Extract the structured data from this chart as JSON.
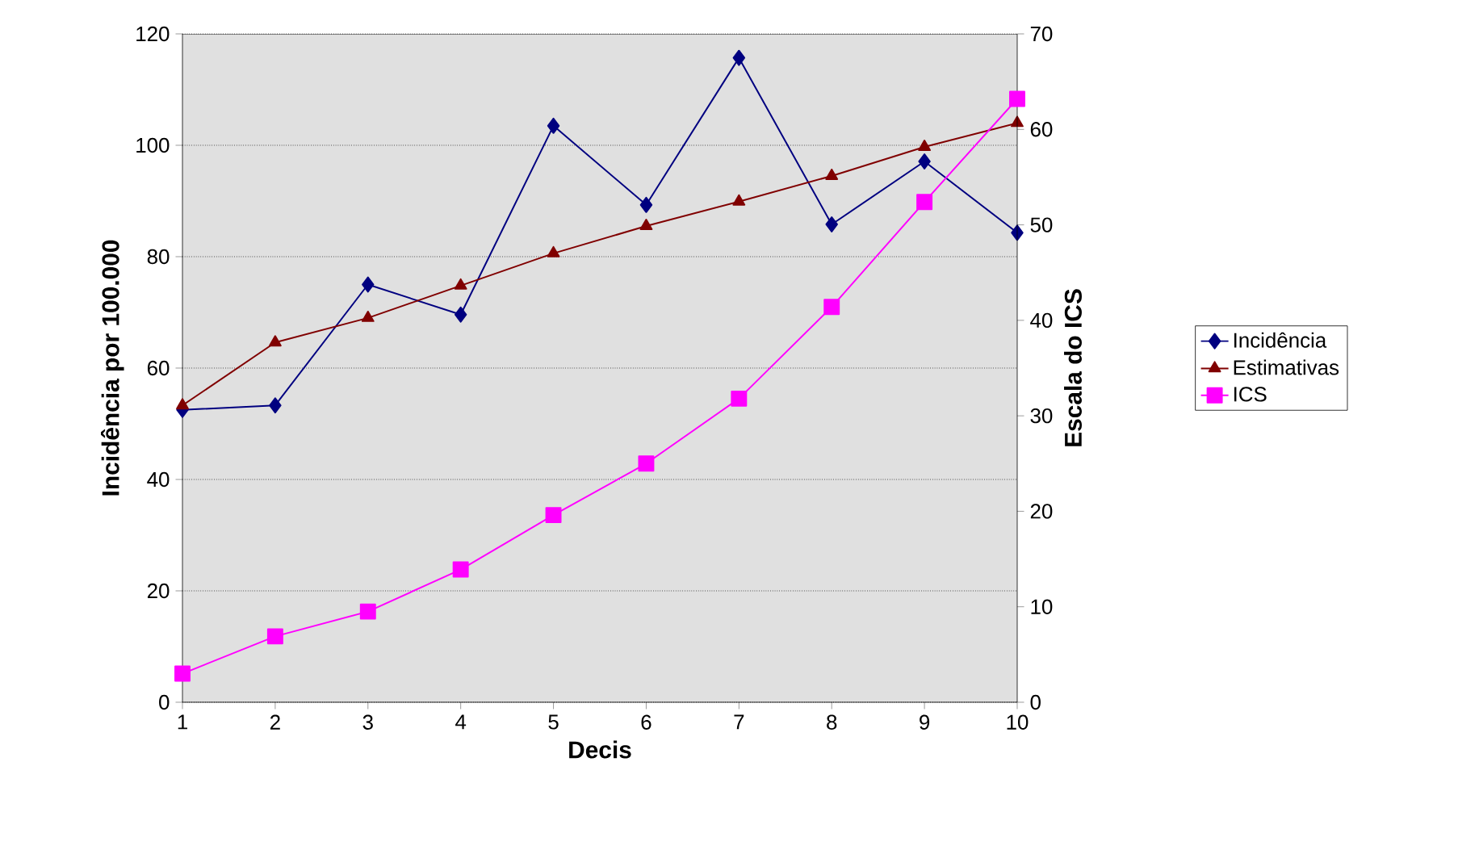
{
  "chart_data": {
    "type": "line",
    "xlabel": "Decis",
    "ylabel": "Incidência por 100.000",
    "y2label": "Escala do ICS",
    "x": [
      1,
      2,
      3,
      4,
      5,
      6,
      7,
      8,
      9,
      10
    ],
    "xlim": [
      1,
      10
    ],
    "xticks": [
      1,
      2,
      3,
      4,
      5,
      6,
      7,
      8,
      9,
      10
    ],
    "ylim": [
      0,
      120
    ],
    "yticks": [
      0,
      20,
      40,
      60,
      80,
      100,
      120
    ],
    "y2lim": [
      0,
      70
    ],
    "y2ticks": [
      0,
      10,
      20,
      30,
      40,
      50,
      60,
      70
    ],
    "grid": "y",
    "legend": "right",
    "line_style": "solid",
    "series": [
      {
        "name": "Incidência",
        "color": "#000080",
        "marker": "diamond",
        "values": [
          52.5,
          53.3,
          75,
          69.6,
          103.5,
          89.3,
          115.7,
          85.8,
          97.1,
          84.3
        ]
      },
      {
        "name": "Estimativas",
        "color": "#800000",
        "marker": "triangle",
        "values": [
          53.3,
          64.6,
          69,
          74.8,
          80.6,
          85.5,
          89.9,
          94.5,
          99.7,
          104
        ]
      },
      {
        "name": "ICS",
        "color": "#ff00ff",
        "marker": "square",
        "axis": "y2",
        "values": [
          3.0,
          6.9,
          9.5,
          13.9,
          19.6,
          25.0,
          31.8,
          41.4,
          52.4,
          63.2
        ]
      }
    ]
  }
}
